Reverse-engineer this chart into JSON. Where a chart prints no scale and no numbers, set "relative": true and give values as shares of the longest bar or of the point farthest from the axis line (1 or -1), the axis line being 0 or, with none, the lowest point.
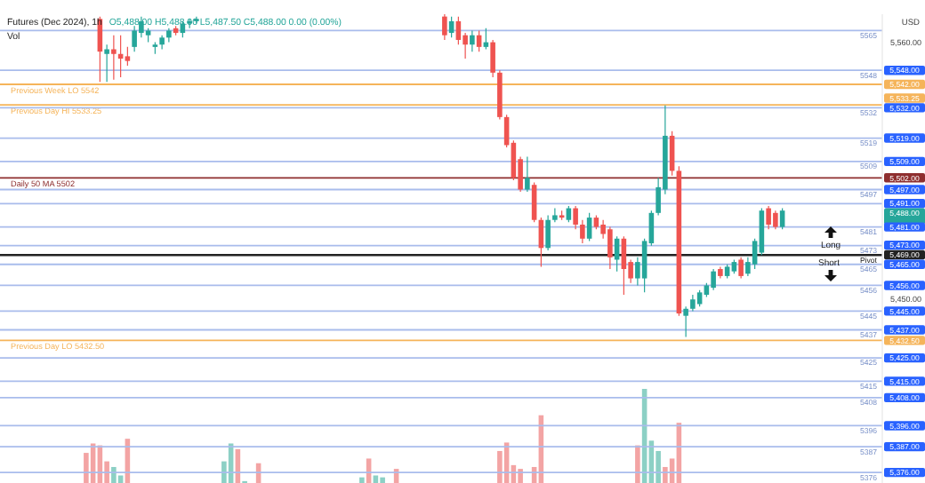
{
  "chart_data": [
    {
      "type": "candlestick",
      "title": "Futures (Dec 2024), 1h",
      "subtitle": "O5,488.00 H5,488.00 L5,487.50 C5,488.00 0.00 (0.00%)",
      "ylabel": "USD",
      "categories": [
        null,
        null,
        null,
        null,
        null,
        null,
        null,
        null,
        null,
        null,
        null,
        null,
        null,
        null,
        null,
        null,
        null,
        null,
        null,
        null,
        null,
        null,
        null,
        null,
        null,
        null,
        null,
        null,
        null,
        null,
        null,
        null,
        null,
        null,
        null,
        null,
        null,
        null,
        null,
        null,
        null,
        null,
        null,
        null,
        null,
        null,
        null,
        null,
        null,
        null,
        null,
        null,
        null,
        null,
        null,
        null,
        null,
        null,
        null,
        null,
        null,
        null,
        null,
        null,
        null,
        null,
        null,
        null,
        null,
        null,
        null,
        null,
        null,
        null,
        null,
        null,
        null,
        null,
        null,
        null,
        null,
        null,
        null,
        null,
        null,
        null,
        null,
        null,
        null,
        null,
        null,
        null,
        null,
        null,
        null,
        null,
        null,
        null,
        null,
        null,
        null,
        null,
        null,
        null,
        null,
        null,
        null,
        null,
        null,
        null,
        null,
        null,
        null,
        null,
        null,
        null,
        null,
        null,
        null,
        null,
        null,
        null,
        null,
        null,
        null,
        null,
        null,
        null
      ],
      "ohlc": [
        null,
        null,
        null,
        null,
        null,
        null,
        null,
        null,
        null,
        null,
        null,
        null,
        null,
        null,
        [
          5570,
          5571,
          5543,
          5556
        ],
        [
          5555,
          5559,
          5543,
          5557
        ],
        [
          5557,
          5563,
          5544,
          5555
        ],
        [
          5555,
          5563,
          5545,
          5553
        ],
        [
          5554,
          5558,
          5550,
          5552
        ],
        [
          5558,
          5567,
          5556,
          5565
        ],
        [
          5564,
          5571,
          5562,
          5569
        ],
        [
          5563,
          5566,
          5560,
          5565
        ],
        [
          5558,
          5560,
          5555,
          5559
        ],
        [
          5559,
          5563,
          5557,
          5562
        ],
        [
          5562,
          5566,
          5560,
          5565
        ],
        [
          5566,
          5567,
          5563,
          5564
        ],
        [
          5564,
          5569,
          5562,
          5568
        ],
        [
          5568,
          5570,
          5566,
          5569
        ],
        [
          5569,
          5571,
          5568,
          5570
        ],
        null,
        null,
        null,
        null,
        null,
        null,
        null,
        null,
        null,
        null,
        null,
        null,
        null,
        null,
        null,
        null,
        null,
        null,
        null,
        null,
        null,
        null,
        null,
        null,
        null,
        null,
        null,
        null,
        null,
        null,
        null,
        null,
        null,
        null,
        null,
        [
          5571,
          5572,
          5561,
          5563
        ],
        [
          5564,
          5571,
          5562,
          5569
        ],
        [
          5569,
          5571,
          5559,
          5561
        ],
        [
          5563,
          5564,
          5553,
          5559
        ],
        [
          5559,
          5565,
          5556,
          5563
        ],
        [
          5563,
          5565,
          5556,
          5558
        ],
        [
          5558,
          5566,
          5557,
          5560
        ],
        [
          5560,
          5561,
          5545,
          5547
        ],
        [
          5547,
          5548,
          5527,
          5528
        ],
        [
          5528,
          5529,
          5515,
          5516
        ],
        [
          5517,
          5518,
          5501,
          5502
        ],
        [
          5510,
          5511,
          5496,
          5497
        ],
        [
          5497,
          5511,
          5496,
          5502
        ],
        [
          5499,
          5500,
          5483,
          5484
        ],
        [
          5484,
          5485,
          5464,
          5472
        ],
        [
          5472,
          5486,
          5471,
          5484
        ],
        [
          5484,
          5489,
          5483,
          5486
        ],
        [
          5486,
          5488,
          5484,
          5485
        ],
        [
          5484,
          5490,
          5483,
          5489
        ],
        [
          5489,
          5490,
          5480,
          5482
        ],
        [
          5482,
          5484,
          5474,
          5476
        ],
        [
          5476,
          5487,
          5475,
          5485
        ],
        [
          5485,
          5486,
          5480,
          5481
        ],
        [
          5482,
          5484,
          5476,
          5478
        ],
        [
          5480,
          5481,
          5463,
          5468
        ],
        [
          5467,
          5477,
          5462,
          5476
        ],
        [
          5476,
          5477,
          5452,
          5463
        ],
        [
          5466,
          5467,
          5457,
          5459
        ],
        [
          5459,
          5468,
          5456,
          5466
        ],
        [
          5459,
          5476,
          5453,
          5475
        ],
        [
          5474,
          5488,
          5473,
          5487
        ],
        [
          5487,
          5502,
          5486,
          5498
        ],
        [
          5497,
          5533,
          5495,
          5520
        ],
        [
          5520,
          5522,
          5503,
          5505
        ],
        [
          5505,
          5507,
          5443,
          5444
        ],
        [
          5443,
          5447,
          5434,
          5446
        ],
        [
          5446,
          5452,
          5445,
          5450
        ],
        [
          5448,
          5454,
          5447,
          5453
        ],
        [
          5452,
          5457,
          5451,
          5456
        ],
        [
          5455,
          5463,
          5454,
          5462
        ],
        [
          5463,
          5464,
          5459,
          5460
        ],
        [
          5460,
          5465,
          5459,
          5464
        ],
        [
          5462,
          5467,
          5461,
          5466
        ],
        [
          5467,
          5468,
          5459,
          5460
        ],
        [
          5461,
          5468,
          5460,
          5466
        ],
        [
          5465,
          5476,
          5463,
          5475
        ],
        [
          5470,
          5489,
          5469,
          5488
        ],
        [
          5489,
          5490,
          5480,
          5482
        ],
        [
          5487,
          5488,
          5480,
          5481
        ],
        [
          5481,
          5489,
          5480,
          5488
        ],
        null,
        null,
        null,
        null,
        null,
        null,
        null,
        null,
        null,
        null,
        null,
        null,
        null,
        null
      ],
      "ylim": [
        5373,
        5572
      ],
      "yticks": [
        {
          "value": 5560,
          "label": "5,560.00"
        },
        {
          "value": 5548,
          "label": "5,548.00"
        },
        {
          "value": 5542,
          "label": "5,542.00"
        },
        {
          "value": 5533.25,
          "label": "5,533.25"
        },
        {
          "value": 5532,
          "label": "5,532.00"
        },
        {
          "value": 5519,
          "label": "5,519.00"
        },
        {
          "value": 5509,
          "label": "5,509.00"
        },
        {
          "value": 5502,
          "label": "5,502.00"
        },
        {
          "value": 5497,
          "label": "5,497.00"
        },
        {
          "value": 5491,
          "label": "5,491.00"
        },
        {
          "value": 5488,
          "label": "5,488.00"
        },
        {
          "value": 5481,
          "label": "5,481.00"
        },
        {
          "value": 5473,
          "label": "5,473.00"
        },
        {
          "value": 5469,
          "label": "5,469.00"
        },
        {
          "value": 5465,
          "label": "5,465.00"
        },
        {
          "value": 5456,
          "label": "5,456.00"
        },
        {
          "value": 5450,
          "label": "5,450.00"
        },
        {
          "value": 5445,
          "label": "5,445.00"
        },
        {
          "value": 5437,
          "label": "5,437.00"
        },
        {
          "value": 5432.5,
          "label": "5,432.50"
        },
        {
          "value": 5425,
          "label": "5,425.00"
        },
        {
          "value": 5415,
          "label": "5,415.00"
        },
        {
          "value": 5408,
          "label": "5,408.00"
        },
        {
          "value": 5396,
          "label": "5,396.00"
        },
        {
          "value": 5387,
          "label": "5,387.00"
        },
        {
          "value": 5376,
          "label": "5,376.00"
        }
      ],
      "ref_lines": [
        {
          "axis": "y",
          "value": 5565,
          "label": "5565",
          "color": "#a9bcec"
        },
        {
          "axis": "y",
          "value": 5548,
          "label": "5548",
          "color": "#a9bcec"
        },
        {
          "axis": "y",
          "value": 5542,
          "label": "Previous Week LO 5542",
          "color": "#f5b45a"
        },
        {
          "axis": "y",
          "value": 5533.25,
          "label": "Previous Day HI 5533.25",
          "color": "#f5b45a"
        },
        {
          "axis": "y",
          "value": 5532,
          "label": "5532",
          "color": "#a9bcec"
        },
        {
          "axis": "y",
          "value": 5519,
          "label": "5519",
          "color": "#a9bcec"
        },
        {
          "axis": "y",
          "value": 5509,
          "label": "5509",
          "color": "#a9bcec"
        },
        {
          "axis": "y",
          "value": 5502,
          "label": "Daily 50 MA 5502",
          "color": "#8e2f2f"
        },
        {
          "axis": "y",
          "value": 5497,
          "label": "5497",
          "color": "#a9bcec"
        },
        {
          "axis": "y",
          "value": 5491,
          "label": null,
          "color": "#a9bcec"
        },
        {
          "axis": "y",
          "value": 5481,
          "label": "5481",
          "color": "#a9bcec"
        },
        {
          "axis": "y",
          "value": 5473,
          "label": "5473",
          "color": "#a9bcec"
        },
        {
          "axis": "y",
          "value": 5469,
          "label": "Pivot",
          "color": "#222222"
        },
        {
          "axis": "y",
          "value": 5465,
          "label": "5465",
          "color": "#a9bcec"
        },
        {
          "axis": "y",
          "value": 5456,
          "label": "5456",
          "color": "#a9bcec"
        },
        {
          "axis": "y",
          "value": 5445,
          "label": "5445",
          "color": "#a9bcec"
        },
        {
          "axis": "y",
          "value": 5437,
          "label": "5437",
          "color": "#a9bcec"
        },
        {
          "axis": "y",
          "value": 5432.5,
          "label": "Previous Day LO 5432.50",
          "color": "#f5b45a"
        },
        {
          "axis": "y",
          "value": 5425,
          "label": "5425",
          "color": "#a9bcec"
        },
        {
          "axis": "y",
          "value": 5415,
          "label": "5415",
          "color": "#a9bcec"
        },
        {
          "axis": "y",
          "value": 5408,
          "label": "5408",
          "color": "#a9bcec"
        },
        {
          "axis": "y",
          "value": 5396,
          "label": "5396",
          "color": "#a9bcec"
        },
        {
          "axis": "y",
          "value": 5387,
          "label": "5387",
          "color": "#a9bcec"
        },
        {
          "axis": "y",
          "value": 5376,
          "label": "5376",
          "color": "#a9bcec"
        }
      ],
      "annotations": [
        "Long",
        "Short"
      ]
    },
    {
      "type": "bar",
      "title": "Vol",
      "relative": true,
      "categories": [
        null,
        null,
        null,
        null,
        null,
        null,
        null,
        null,
        null,
        null,
        null,
        null,
        null,
        null,
        null,
        null,
        null,
        null,
        null,
        null,
        null,
        null,
        null,
        null,
        null,
        null,
        null,
        null,
        null,
        null,
        null,
        null,
        null,
        null,
        null,
        null,
        null,
        null,
        null,
        null,
        null,
        null,
        null,
        null,
        null,
        null,
        null,
        null,
        null,
        null,
        null,
        null,
        null,
        null,
        null,
        null,
        null,
        null,
        null,
        null,
        null,
        null,
        null,
        null,
        null,
        null,
        null,
        null,
        null,
        null,
        null,
        null,
        null,
        null,
        null,
        null,
        null,
        null,
        null,
        null,
        null,
        null,
        null,
        null,
        null,
        null,
        null,
        null,
        null,
        null,
        null,
        null,
        null,
        null,
        null,
        null,
        null,
        null,
        null,
        null,
        null,
        null,
        null,
        null,
        null,
        null,
        null,
        null,
        null,
        null,
        null,
        null,
        null,
        null,
        null,
        null,
        null,
        null,
        null,
        null,
        null,
        null,
        null,
        null,
        null,
        null,
        null,
        null
      ],
      "values": [
        null,
        null,
        null,
        null,
        null,
        null,
        null,
        null,
        null,
        null,
        null,
        null,
        0.32,
        0.42,
        0.4,
        0.23,
        0.17,
        0.08,
        0.47,
        null,
        null,
        null,
        null,
        null,
        null,
        null,
        null,
        null,
        null,
        null,
        null,
        null,
        0.23,
        0.42,
        0.36,
        0.02,
        null,
        0.21,
        null,
        null,
        null,
        null,
        null,
        null,
        null,
        null,
        null,
        null,
        null,
        null,
        null,
        null,
        0.06,
        0.26,
        0.08,
        0.06,
        null,
        0.15,
        null,
        null,
        null,
        null,
        null,
        null,
        null,
        null,
        null,
        null,
        null,
        null,
        null,
        null,
        0.34,
        0.43,
        0.19,
        0.15,
        null,
        0.17,
        0.72,
        null,
        null,
        null,
        null,
        null,
        null,
        null,
        null,
        null,
        null,
        null,
        null,
        null,
        0.4,
        1,
        0.45,
        0.34,
        0.17,
        0.26,
        0.64,
        null,
        null,
        null,
        null,
        null,
        null,
        null,
        null,
        null,
        null,
        null,
        null,
        null,
        null,
        null,
        null,
        null,
        null,
        null,
        null,
        null,
        null,
        null,
        null,
        null,
        null,
        null,
        null,
        null
      ],
      "colors": [
        null,
        null,
        null,
        null,
        null,
        null,
        null,
        null,
        null,
        null,
        null,
        null,
        "#f29a9a",
        "#f29a9a",
        "#f29a9a",
        "#f29a9a",
        "#7fcbbf",
        "#7fcbbf",
        "#f29a9a",
        null,
        null,
        null,
        null,
        null,
        null,
        null,
        null,
        null,
        null,
        null,
        null,
        null,
        "#7fcbbf",
        "#7fcbbf",
        "#f29a9a",
        "#7fcbbf",
        null,
        "#f29a9a",
        null,
        null,
        null,
        null,
        null,
        null,
        null,
        null,
        null,
        null,
        null,
        null,
        null,
        null,
        "#7fcbbf",
        "#f29a9a",
        "#7fcbbf",
        "#7fcbbf",
        null,
        "#f29a9a",
        null,
        null,
        null,
        null,
        null,
        null,
        null,
        null,
        null,
        null,
        null,
        null,
        null,
        null,
        "#f29a9a",
        "#f29a9a",
        "#f29a9a",
        "#f29a9a",
        null,
        "#f29a9a",
        "#f29a9a",
        null,
        null,
        null,
        null,
        null,
        null,
        null,
        null,
        null,
        null,
        null,
        null,
        null,
        "#f29a9a",
        "#7fcbbf",
        "#7fcbbf",
        "#7fcbbf",
        "#f29a9a",
        "#f29a9a",
        "#f29a9a",
        null,
        null,
        null,
        null,
        null,
        null,
        null,
        null,
        null,
        null,
        null,
        null,
        null,
        null,
        null,
        null,
        null,
        null,
        null,
        null,
        null,
        null,
        null,
        null,
        null,
        null,
        null,
        null,
        null
      ]
    }
  ]
}
